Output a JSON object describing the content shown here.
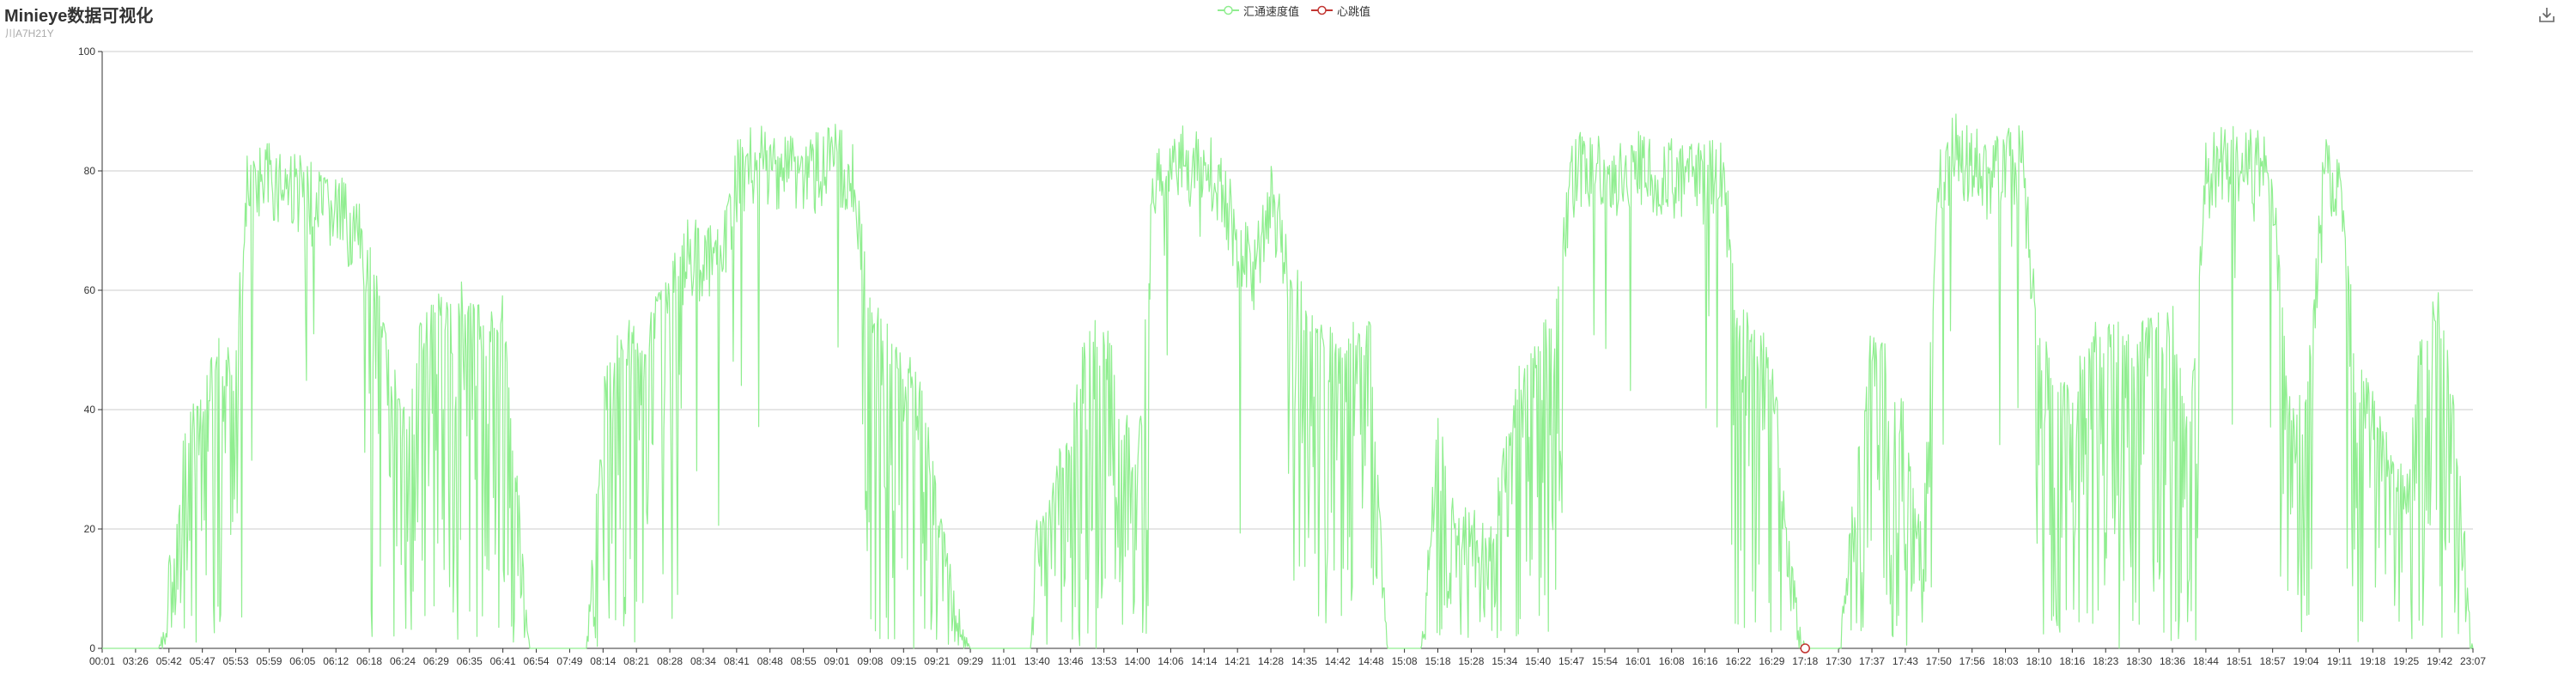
{
  "title": "Minieye数据可视化",
  "subtitle": "川A7H21Y",
  "toolbox": {
    "download_icon": "download-icon"
  },
  "colors": {
    "speed": "#90ee90",
    "heartbeat": "#c23531",
    "axis": "#333333",
    "grid": "#cccccc"
  },
  "chart_data": {
    "type": "line",
    "title": "Minieye数据可视化",
    "subtitle": "川A7H21Y",
    "legend": [
      "汇通速度值",
      "心跳值"
    ],
    "legend_position": "top-center",
    "ylim": [
      0,
      100
    ],
    "yticks": [
      0,
      20,
      40,
      60,
      80,
      100
    ],
    "grid": true,
    "x_tick_labels": [
      "00:01",
      "03:26",
      "05:42",
      "05:47",
      "05:53",
      "05:59",
      "06:05",
      "06:12",
      "06:18",
      "06:24",
      "06:29",
      "06:35",
      "06:41",
      "06:54",
      "07:49",
      "08:14",
      "08:21",
      "08:28",
      "08:34",
      "08:41",
      "08:48",
      "08:55",
      "09:01",
      "09:08",
      "09:15",
      "09:21",
      "09:29",
      "11:01",
      "13:40",
      "13:46",
      "13:53",
      "14:00",
      "14:06",
      "14:14",
      "14:21",
      "14:28",
      "14:35",
      "14:42",
      "14:48",
      "15:08",
      "15:18",
      "15:28",
      "15:34",
      "15:40",
      "15:47",
      "15:54",
      "16:01",
      "16:08",
      "16:16",
      "16:22",
      "16:29",
      "17:18",
      "17:30",
      "17:37",
      "17:43",
      "17:50",
      "17:56",
      "18:03",
      "18:10",
      "18:16",
      "18:23",
      "18:30",
      "18:36",
      "18:44",
      "18:51",
      "18:57",
      "19:04",
      "19:11",
      "19:18",
      "19:25",
      "19:42",
      "23:07"
    ],
    "x_range": [
      0,
      71
    ],
    "series": [
      {
        "name": "汇通速度值",
        "color": "#90ee90",
        "envelope": [
          [
            0,
            0
          ],
          [
            1.7,
            0
          ],
          [
            2.0,
            15
          ],
          [
            2.5,
            40
          ],
          [
            3.0,
            45
          ],
          [
            3.5,
            52
          ],
          [
            4.0,
            50
          ],
          [
            4.3,
            83
          ],
          [
            4.7,
            85
          ],
          [
            5.5,
            85
          ],
          [
            6.0,
            83
          ],
          [
            6.5,
            80
          ],
          [
            7.0,
            80
          ],
          [
            7.6,
            76
          ],
          [
            8.0,
            70
          ],
          [
            8.5,
            55
          ],
          [
            9.0,
            40
          ],
          [
            9.5,
            55
          ],
          [
            10.0,
            60
          ],
          [
            10.5,
            62
          ],
          [
            11.0,
            63
          ],
          [
            11.5,
            55
          ],
          [
            12.0,
            60
          ],
          [
            12.5,
            25
          ],
          [
            12.8,
            0
          ],
          [
            14.5,
            0
          ],
          [
            15.0,
            45
          ],
          [
            15.5,
            55
          ],
          [
            16.0,
            55
          ],
          [
            16.5,
            58
          ],
          [
            17.0,
            65
          ],
          [
            17.5,
            72
          ],
          [
            18.0,
            72
          ],
          [
            18.5,
            70
          ],
          [
            19.0,
            85
          ],
          [
            19.5,
            88
          ],
          [
            20.0,
            87
          ],
          [
            20.5,
            88
          ],
          [
            21.0,
            86
          ],
          [
            21.5,
            87
          ],
          [
            22.0,
            88
          ],
          [
            22.5,
            86
          ],
          [
            23.0,
            60
          ],
          [
            23.5,
            55
          ],
          [
            24.0,
            52
          ],
          [
            24.5,
            45
          ],
          [
            25.0,
            30
          ],
          [
            25.5,
            10
          ],
          [
            26.0,
            0
          ],
          [
            27.8,
            0
          ],
          [
            28.0,
            25
          ],
          [
            28.5,
            30
          ],
          [
            29.0,
            40
          ],
          [
            29.5,
            55
          ],
          [
            30.0,
            58
          ],
          [
            30.5,
            45
          ],
          [
            31.0,
            30
          ],
          [
            31.5,
            85
          ],
          [
            32.0,
            87
          ],
          [
            32.5,
            88
          ],
          [
            33.0,
            87
          ],
          [
            33.5,
            85
          ],
          [
            34.0,
            75
          ],
          [
            34.5,
            70
          ],
          [
            35.0,
            83
          ],
          [
            35.5,
            70
          ],
          [
            36.0,
            60
          ],
          [
            36.5,
            60
          ],
          [
            37.0,
            50
          ],
          [
            37.5,
            55
          ],
          [
            38.0,
            55
          ],
          [
            38.5,
            0
          ],
          [
            39.5,
            0
          ],
          [
            40.0,
            40
          ],
          [
            40.5,
            25
          ],
          [
            41.0,
            25
          ],
          [
            41.5,
            20
          ],
          [
            42.0,
            35
          ],
          [
            42.5,
            50
          ],
          [
            43.0,
            55
          ],
          [
            43.5,
            58
          ],
          [
            44.0,
            85
          ],
          [
            44.5,
            88
          ],
          [
            45.0,
            85
          ],
          [
            45.5,
            86
          ],
          [
            46.0,
            87
          ],
          [
            46.5,
            86
          ],
          [
            47.0,
            86
          ],
          [
            47.5,
            85
          ],
          [
            48.0,
            85
          ],
          [
            48.5,
            88
          ],
          [
            49.0,
            58
          ],
          [
            49.5,
            55
          ],
          [
            50.0,
            52
          ],
          [
            50.5,
            20
          ],
          [
            51.0,
            0
          ],
          [
            52.0,
            0
          ],
          [
            52.5,
            30
          ],
          [
            53.0,
            55
          ],
          [
            53.5,
            50
          ],
          [
            54.0,
            40
          ],
          [
            54.5,
            20
          ],
          [
            55.0,
            85
          ],
          [
            55.5,
            90
          ],
          [
            56.0,
            88
          ],
          [
            56.5,
            85
          ],
          [
            57.0,
            87
          ],
          [
            57.5,
            88
          ],
          [
            58.0,
            55
          ],
          [
            58.5,
            50
          ],
          [
            59.0,
            45
          ],
          [
            59.5,
            55
          ],
          [
            60.0,
            55
          ],
          [
            60.5,
            55
          ],
          [
            61.0,
            55
          ],
          [
            61.5,
            57
          ],
          [
            62.0,
            58
          ],
          [
            62.5,
            40
          ],
          [
            63.0,
            85
          ],
          [
            63.5,
            88
          ],
          [
            64.0,
            88
          ],
          [
            64.5,
            88
          ],
          [
            65.0,
            85
          ],
          [
            65.5,
            45
          ],
          [
            66.0,
            42
          ],
          [
            66.5,
            86
          ],
          [
            67.0,
            85
          ],
          [
            67.5,
            50
          ],
          [
            68.0,
            45
          ],
          [
            68.5,
            35
          ],
          [
            69.0,
            30
          ],
          [
            69.5,
            58
          ],
          [
            70.0,
            60
          ],
          [
            70.5,
            40
          ],
          [
            71.0,
            0
          ]
        ]
      },
      {
        "name": "心跳值",
        "color": "#c23531",
        "values": [
          [
            51.0,
            0
          ]
        ]
      }
    ]
  }
}
